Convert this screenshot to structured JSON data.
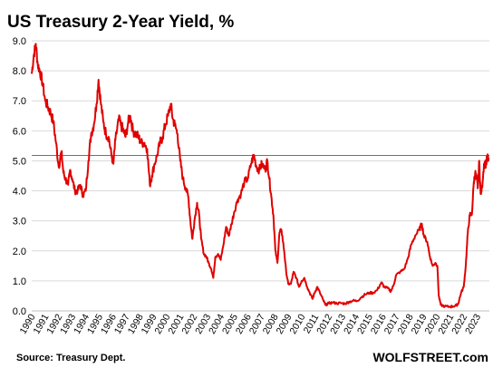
{
  "chart_data": {
    "type": "line",
    "title": "US Treasury 2-Year Yield, %",
    "xlabel": "",
    "ylabel": "",
    "ylim": [
      0,
      9.0
    ],
    "y_ticks": [
      "0.0",
      "1.0",
      "2.0",
      "3.0",
      "4.0",
      "5.0",
      "6.0",
      "7.0",
      "8.0",
      "9.0"
    ],
    "x_ticks": [
      "1990",
      "1991",
      "1992",
      "1993",
      "1994",
      "1995",
      "1996",
      "1997",
      "1998",
      "1999",
      "2000",
      "2001",
      "2002",
      "2003",
      "2004",
      "2005",
      "2006",
      "2007",
      "2008",
      "2009",
      "2010",
      "2011",
      "2012",
      "2013",
      "2014",
      "2015",
      "2016",
      "2017",
      "2018",
      "2019",
      "2020",
      "2021",
      "2022",
      "2023"
    ],
    "xlim": [
      1990.0,
      2023.9
    ],
    "grid": "horizontal",
    "reference_line": {
      "value": 5.18,
      "color": "#2e9e3e"
    },
    "series": [
      {
        "color": "#e00000",
        "points": [
          [
            1990.0,
            7.9
          ],
          [
            1990.15,
            8.5
          ],
          [
            1990.3,
            8.9
          ],
          [
            1990.45,
            8.2
          ],
          [
            1990.6,
            8.0
          ],
          [
            1990.8,
            7.6
          ],
          [
            1991.0,
            7.0
          ],
          [
            1991.2,
            6.8
          ],
          [
            1991.4,
            6.6
          ],
          [
            1991.6,
            6.3
          ],
          [
            1991.8,
            5.6
          ],
          [
            1992.0,
            4.8
          ],
          [
            1992.2,
            5.3
          ],
          [
            1992.35,
            4.6
          ],
          [
            1992.5,
            4.4
          ],
          [
            1992.7,
            4.2
          ],
          [
            1992.85,
            4.7
          ],
          [
            1993.0,
            4.4
          ],
          [
            1993.2,
            4.0
          ],
          [
            1993.4,
            4.0
          ],
          [
            1993.6,
            4.2
          ],
          [
            1993.8,
            3.85
          ],
          [
            1994.0,
            4.0
          ],
          [
            1994.2,
            5.0
          ],
          [
            1994.4,
            5.9
          ],
          [
            1994.6,
            6.2
          ],
          [
            1994.8,
            6.9
          ],
          [
            1994.95,
            7.7
          ],
          [
            1995.1,
            7.0
          ],
          [
            1995.3,
            6.3
          ],
          [
            1995.5,
            5.9
          ],
          [
            1995.7,
            5.8
          ],
          [
            1995.9,
            5.2
          ],
          [
            1996.05,
            4.9
          ],
          [
            1996.2,
            5.7
          ],
          [
            1996.45,
            6.4
          ],
          [
            1996.6,
            6.2
          ],
          [
            1996.8,
            6.0
          ],
          [
            1996.95,
            5.8
          ],
          [
            1997.15,
            6.3
          ],
          [
            1997.3,
            6.5
          ],
          [
            1997.5,
            6.0
          ],
          [
            1997.7,
            5.9
          ],
          [
            1997.9,
            5.8
          ],
          [
            1998.1,
            5.6
          ],
          [
            1998.35,
            5.6
          ],
          [
            1998.55,
            5.4
          ],
          [
            1998.75,
            4.2
          ],
          [
            1998.9,
            4.5
          ],
          [
            1999.1,
            4.9
          ],
          [
            1999.3,
            5.2
          ],
          [
            1999.5,
            5.6
          ],
          [
            1999.7,
            5.8
          ],
          [
            1999.9,
            6.2
          ],
          [
            2000.1,
            6.5
          ],
          [
            2000.3,
            6.9
          ],
          [
            2000.45,
            6.4
          ],
          [
            2000.6,
            6.2
          ],
          [
            2000.8,
            5.9
          ],
          [
            2001.0,
            5.0
          ],
          [
            2001.2,
            4.4
          ],
          [
            2001.4,
            4.1
          ],
          [
            2001.6,
            3.8
          ],
          [
            2001.75,
            3.0
          ],
          [
            2001.9,
            2.4
          ],
          [
            2002.05,
            3.0
          ],
          [
            2002.25,
            3.6
          ],
          [
            2002.4,
            3.2
          ],
          [
            2002.55,
            2.4
          ],
          [
            2002.75,
            1.9
          ],
          [
            2002.95,
            1.8
          ],
          [
            2003.1,
            1.6
          ],
          [
            2003.3,
            1.4
          ],
          [
            2003.45,
            1.1
          ],
          [
            2003.6,
            1.8
          ],
          [
            2003.8,
            1.9
          ],
          [
            2004.0,
            1.7
          ],
          [
            2004.2,
            2.2
          ],
          [
            2004.4,
            2.8
          ],
          [
            2004.6,
            2.5
          ],
          [
            2004.8,
            2.9
          ],
          [
            2005.0,
            3.3
          ],
          [
            2005.25,
            3.7
          ],
          [
            2005.5,
            3.9
          ],
          [
            2005.75,
            4.3
          ],
          [
            2006.0,
            4.4
          ],
          [
            2006.25,
            4.9
          ],
          [
            2006.45,
            5.2
          ],
          [
            2006.65,
            4.8
          ],
          [
            2006.85,
            4.7
          ],
          [
            2007.05,
            4.9
          ],
          [
            2007.3,
            4.7
          ],
          [
            2007.45,
            5.0
          ],
          [
            2007.6,
            4.4
          ],
          [
            2007.75,
            3.8
          ],
          [
            2007.9,
            3.2
          ],
          [
            2008.05,
            2.0
          ],
          [
            2008.2,
            1.6
          ],
          [
            2008.35,
            2.6
          ],
          [
            2008.5,
            2.7
          ],
          [
            2008.7,
            2.0
          ],
          [
            2008.85,
            1.3
          ],
          [
            2009.0,
            0.9
          ],
          [
            2009.2,
            0.9
          ],
          [
            2009.4,
            1.3
          ],
          [
            2009.6,
            1.1
          ],
          [
            2009.8,
            0.8
          ],
          [
            2010.0,
            1.0
          ],
          [
            2010.2,
            1.1
          ],
          [
            2010.4,
            0.8
          ],
          [
            2010.6,
            0.6
          ],
          [
            2010.8,
            0.4
          ],
          [
            2010.95,
            0.6
          ],
          [
            2011.15,
            0.8
          ],
          [
            2011.35,
            0.6
          ],
          [
            2011.55,
            0.4
          ],
          [
            2011.75,
            0.2
          ],
          [
            2012.0,
            0.25
          ],
          [
            2012.3,
            0.28
          ],
          [
            2012.6,
            0.25
          ],
          [
            2012.9,
            0.26
          ],
          [
            2013.2,
            0.24
          ],
          [
            2013.5,
            0.3
          ],
          [
            2013.8,
            0.34
          ],
          [
            2014.1,
            0.33
          ],
          [
            2014.4,
            0.45
          ],
          [
            2014.7,
            0.55
          ],
          [
            2015.0,
            0.6
          ],
          [
            2015.3,
            0.6
          ],
          [
            2015.6,
            0.7
          ],
          [
            2015.9,
            0.95
          ],
          [
            2016.1,
            0.8
          ],
          [
            2016.4,
            0.75
          ],
          [
            2016.6,
            0.65
          ],
          [
            2016.8,
            0.85
          ],
          [
            2017.0,
            1.2
          ],
          [
            2017.3,
            1.3
          ],
          [
            2017.6,
            1.4
          ],
          [
            2017.9,
            1.8
          ],
          [
            2018.1,
            2.2
          ],
          [
            2018.4,
            2.5
          ],
          [
            2018.7,
            2.7
          ],
          [
            2018.9,
            2.9
          ],
          [
            2019.05,
            2.5
          ],
          [
            2019.3,
            2.3
          ],
          [
            2019.5,
            1.8
          ],
          [
            2019.7,
            1.5
          ],
          [
            2019.9,
            1.6
          ],
          [
            2020.05,
            1.5
          ],
          [
            2020.15,
            0.5
          ],
          [
            2020.3,
            0.2
          ],
          [
            2020.6,
            0.15
          ],
          [
            2020.9,
            0.14
          ],
          [
            2021.2,
            0.15
          ],
          [
            2021.45,
            0.18
          ],
          [
            2021.6,
            0.25
          ],
          [
            2021.8,
            0.6
          ],
          [
            2022.0,
            0.8
          ],
          [
            2022.15,
            1.5
          ],
          [
            2022.3,
            2.6
          ],
          [
            2022.45,
            3.2
          ],
          [
            2022.6,
            3.2
          ],
          [
            2022.75,
            4.3
          ],
          [
            2022.85,
            4.6
          ],
          [
            2022.95,
            4.4
          ],
          [
            2023.05,
            4.1
          ],
          [
            2023.15,
            5.0
          ],
          [
            2023.25,
            3.9
          ],
          [
            2023.35,
            4.1
          ],
          [
            2023.5,
            4.9
          ],
          [
            2023.65,
            4.9
          ],
          [
            2023.75,
            5.1
          ],
          [
            2023.85,
            5.05
          ]
        ]
      }
    ],
    "source": "Source: Treasury Dept.",
    "brand": "WOLFSTREET.com"
  }
}
